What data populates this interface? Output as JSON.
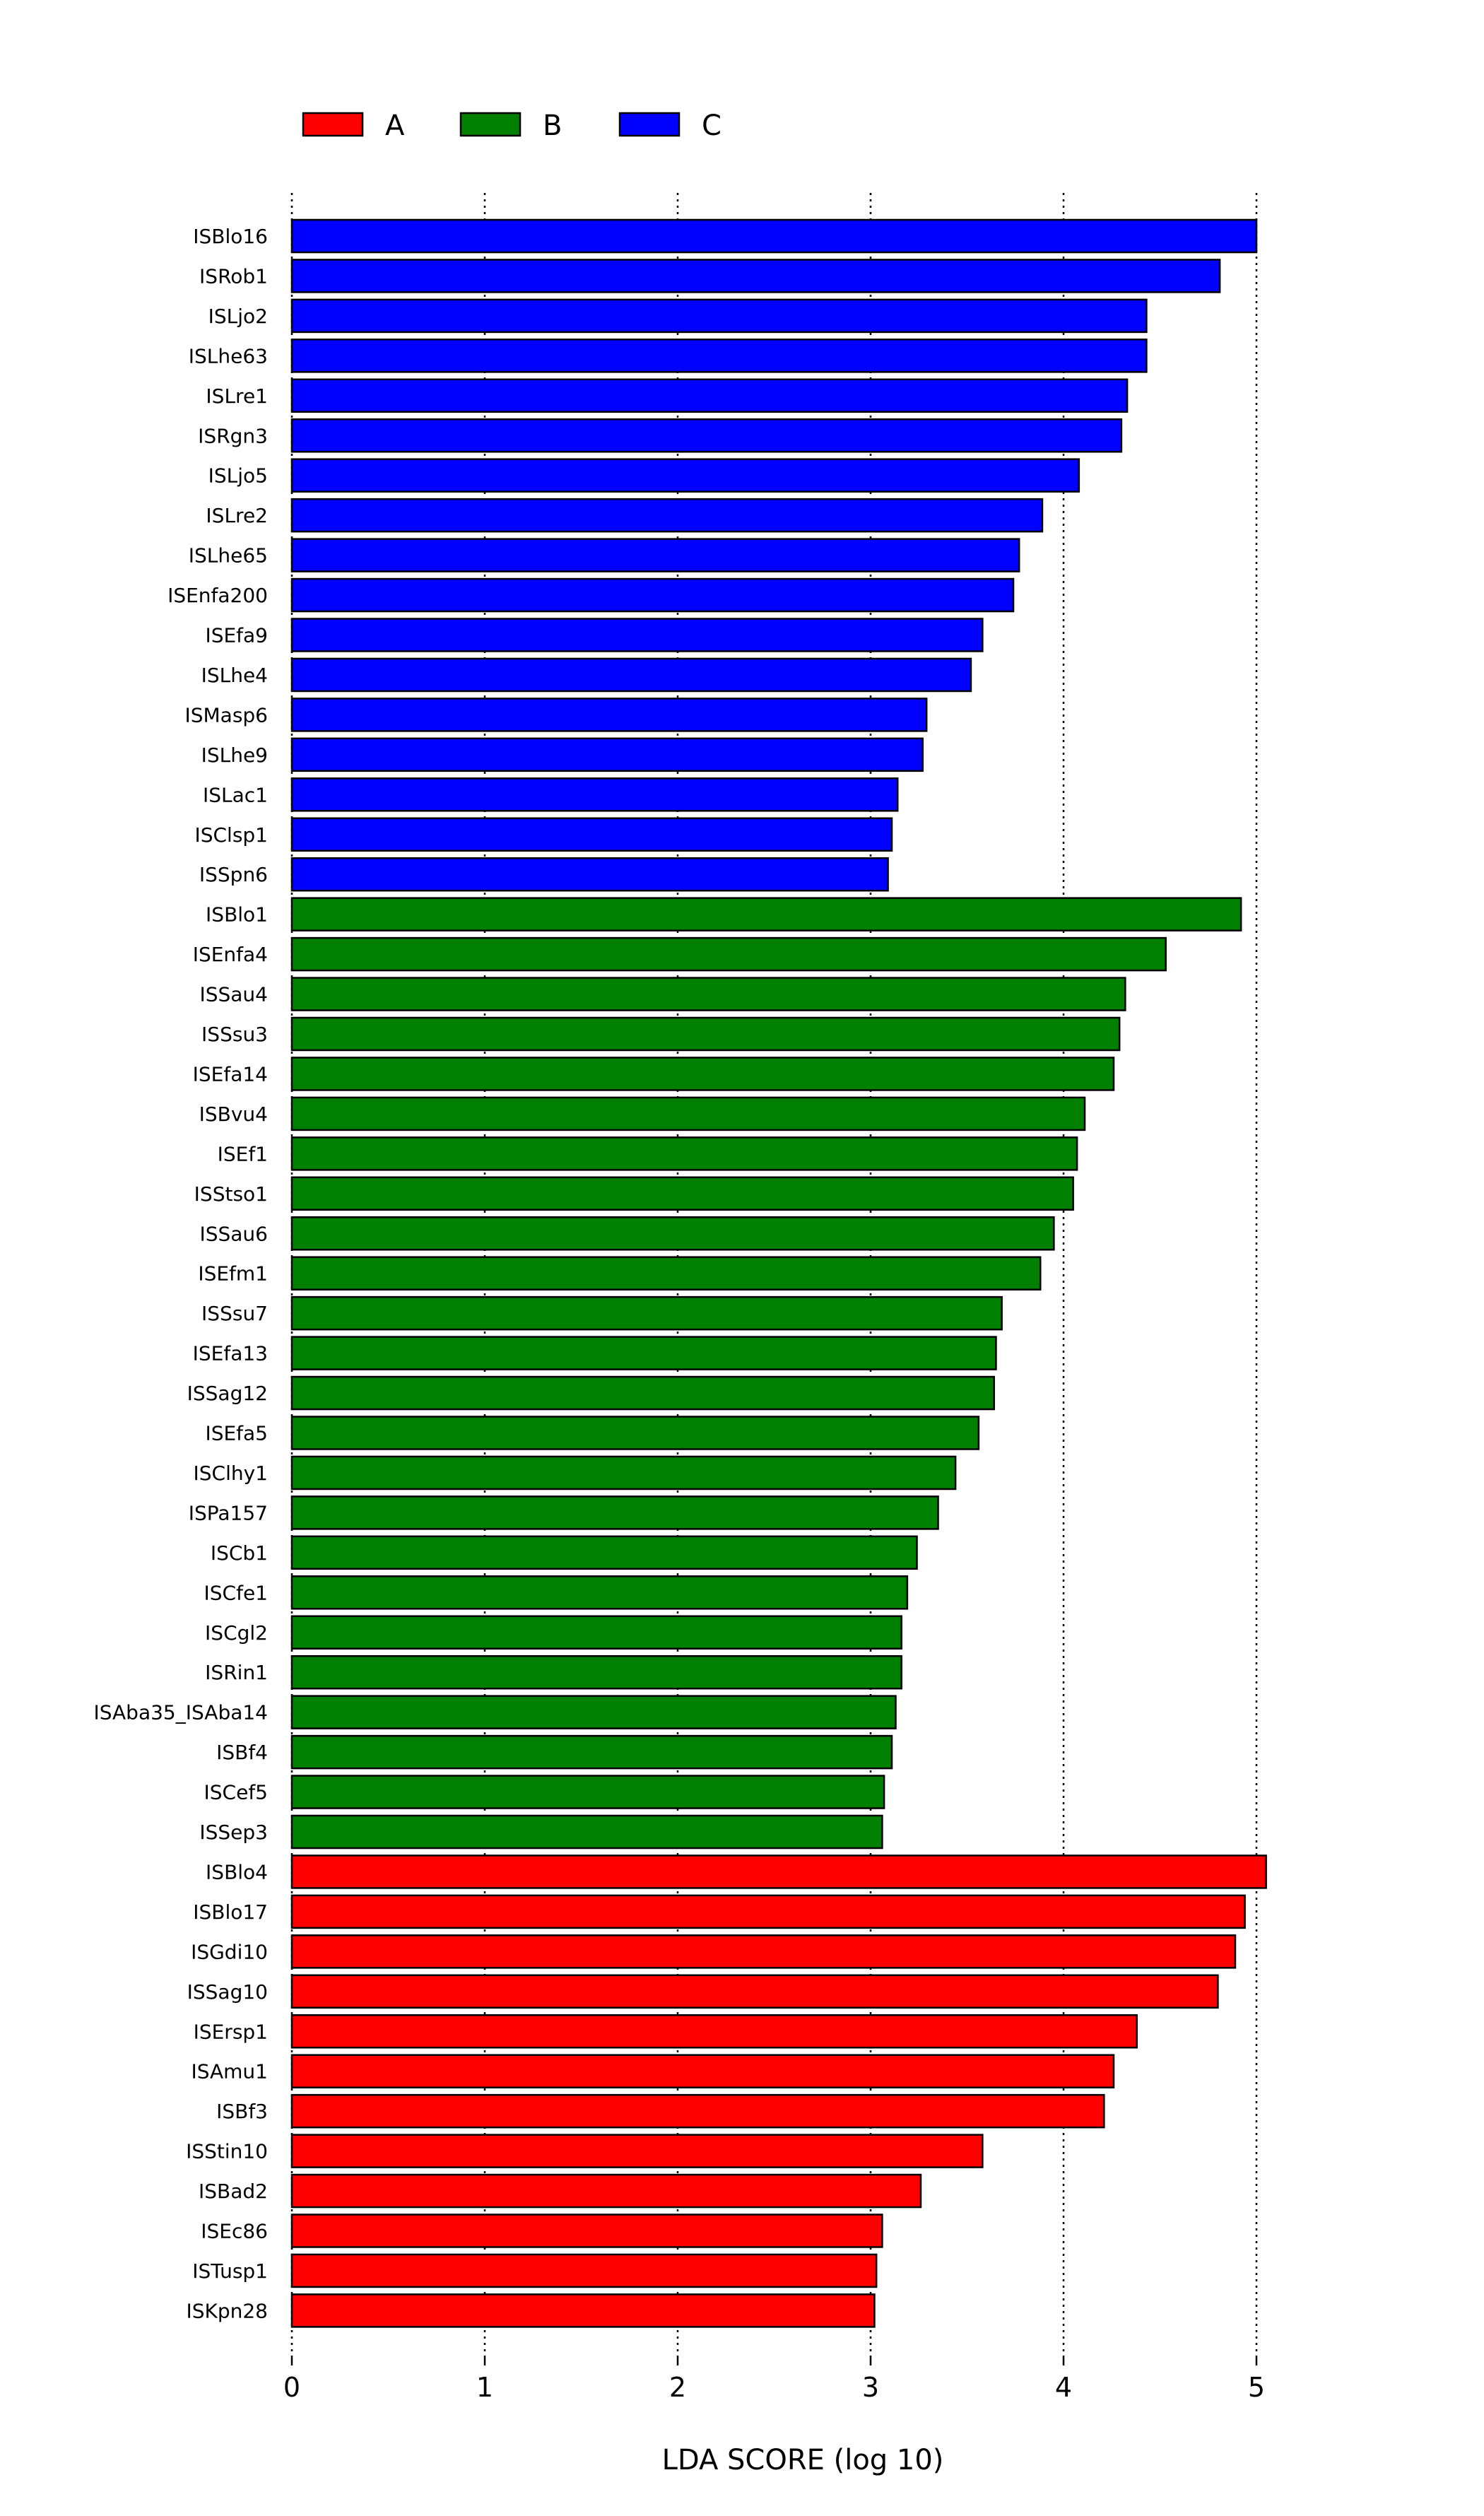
{
  "chart_data": {
    "type": "bar",
    "orientation": "horizontal",
    "xlabel": "LDA SCORE (log 10)",
    "ylabel": "",
    "title": "",
    "xlim": [
      0,
      5.1
    ],
    "xticks": [
      0,
      1,
      2,
      3,
      4,
      5
    ],
    "grid": "vertical dotted lines at each x tick",
    "legend_position": "top-left, horizontal",
    "legend": [
      {
        "name": "A",
        "color": "#ff0000"
      },
      {
        "name": "B",
        "color": "#008000"
      },
      {
        "name": "C",
        "color": "#0000ff"
      }
    ],
    "bars": [
      {
        "label": "ISBlo16",
        "value": 5.0,
        "group": "C"
      },
      {
        "label": "ISRob1",
        "value": 4.81,
        "group": "C"
      },
      {
        "label": "ISLjo2",
        "value": 4.43,
        "group": "C"
      },
      {
        "label": "ISLhe63",
        "value": 4.43,
        "group": "C"
      },
      {
        "label": "ISLre1",
        "value": 4.33,
        "group": "C"
      },
      {
        "label": "ISRgn3",
        "value": 4.3,
        "group": "C"
      },
      {
        "label": "ISLjo5",
        "value": 4.08,
        "group": "C"
      },
      {
        "label": "ISLre2",
        "value": 3.89,
        "group": "C"
      },
      {
        "label": "ISLhe65",
        "value": 3.77,
        "group": "C"
      },
      {
        "label": "ISEnfa200",
        "value": 3.74,
        "group": "C"
      },
      {
        "label": "ISEfa9",
        "value": 3.58,
        "group": "C"
      },
      {
        "label": "ISLhe4",
        "value": 3.52,
        "group": "C"
      },
      {
        "label": "ISMasp6",
        "value": 3.29,
        "group": "C"
      },
      {
        "label": "ISLhe9",
        "value": 3.27,
        "group": "C"
      },
      {
        "label": "ISLac1",
        "value": 3.14,
        "group": "C"
      },
      {
        "label": "ISClsp1",
        "value": 3.11,
        "group": "C"
      },
      {
        "label": "ISSpn6",
        "value": 3.09,
        "group": "C"
      },
      {
        "label": "ISBlo1",
        "value": 4.92,
        "group": "B"
      },
      {
        "label": "ISEnfa4",
        "value": 4.53,
        "group": "B"
      },
      {
        "label": "ISSau4",
        "value": 4.32,
        "group": "B"
      },
      {
        "label": "ISSsu3",
        "value": 4.29,
        "group": "B"
      },
      {
        "label": "ISEfa14",
        "value": 4.26,
        "group": "B"
      },
      {
        "label": "ISBvu4",
        "value": 4.11,
        "group": "B"
      },
      {
        "label": "ISEf1",
        "value": 4.07,
        "group": "B"
      },
      {
        "label": "ISStso1",
        "value": 4.05,
        "group": "B"
      },
      {
        "label": "ISSau6",
        "value": 3.95,
        "group": "B"
      },
      {
        "label": "ISEfm1",
        "value": 3.88,
        "group": "B"
      },
      {
        "label": "ISSsu7",
        "value": 3.68,
        "group": "B"
      },
      {
        "label": "ISEfa13",
        "value": 3.65,
        "group": "B"
      },
      {
        "label": "ISSag12",
        "value": 3.64,
        "group": "B"
      },
      {
        "label": "ISEfa5",
        "value": 3.56,
        "group": "B"
      },
      {
        "label": "ISClhy1",
        "value": 3.44,
        "group": "B"
      },
      {
        "label": "ISPa157",
        "value": 3.35,
        "group": "B"
      },
      {
        "label": "ISCb1",
        "value": 3.24,
        "group": "B"
      },
      {
        "label": "ISCfe1",
        "value": 3.19,
        "group": "B"
      },
      {
        "label": "ISCgl2",
        "value": 3.16,
        "group": "B"
      },
      {
        "label": "ISRin1",
        "value": 3.16,
        "group": "B"
      },
      {
        "label": "ISAba35_ISAba14",
        "value": 3.13,
        "group": "B"
      },
      {
        "label": "ISBf4",
        "value": 3.11,
        "group": "B"
      },
      {
        "label": "ISCef5",
        "value": 3.07,
        "group": "B"
      },
      {
        "label": "ISSep3",
        "value": 3.06,
        "group": "B"
      },
      {
        "label": "ISBlo4",
        "value": 5.05,
        "group": "A"
      },
      {
        "label": "ISBlo17",
        "value": 4.94,
        "group": "A"
      },
      {
        "label": "ISGdi10",
        "value": 4.89,
        "group": "A"
      },
      {
        "label": "ISSag10",
        "value": 4.8,
        "group": "A"
      },
      {
        "label": "ISErsp1",
        "value": 4.38,
        "group": "A"
      },
      {
        "label": "ISAmu1",
        "value": 4.26,
        "group": "A"
      },
      {
        "label": "ISBf3",
        "value": 4.21,
        "group": "A"
      },
      {
        "label": "ISStin10",
        "value": 3.58,
        "group": "A"
      },
      {
        "label": "ISBad2",
        "value": 3.26,
        "group": "A"
      },
      {
        "label": "ISEc86",
        "value": 3.06,
        "group": "A"
      },
      {
        "label": "ISTusp1",
        "value": 3.03,
        "group": "A"
      },
      {
        "label": "ISKpn28",
        "value": 3.02,
        "group": "A"
      }
    ]
  }
}
